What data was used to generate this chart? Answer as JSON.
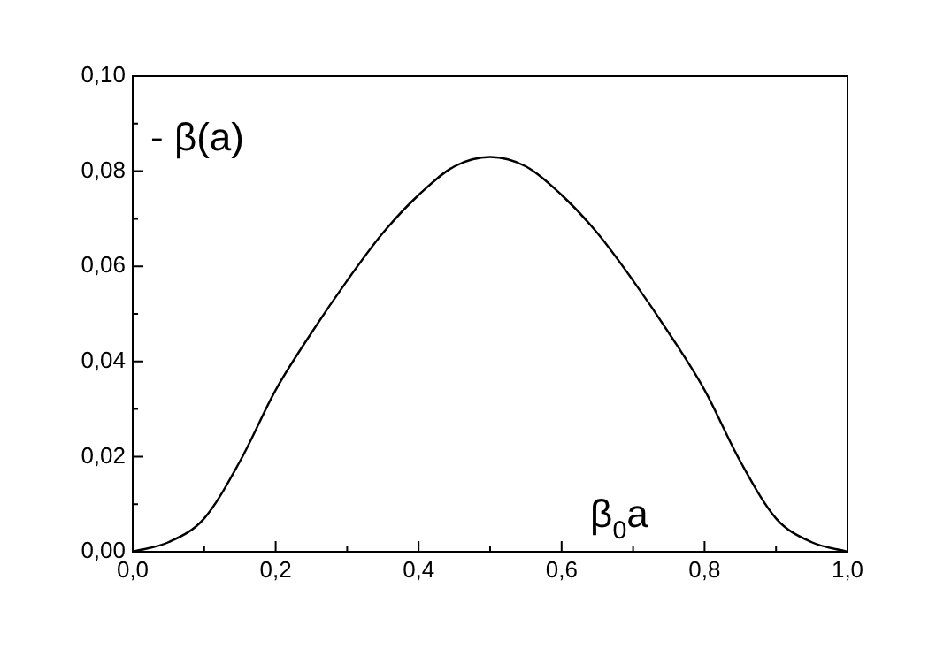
{
  "chart_data": {
    "type": "line",
    "xlabel": "β$_{0}$a",
    "ylabel": "- β(a)",
    "x": [
      0,
      0.05,
      0.1,
      0.15,
      0.2,
      0.25,
      0.3,
      0.35,
      0.4,
      0.45,
      0.5,
      0.55,
      0.6,
      0.65,
      0.7,
      0.75,
      0.8,
      0.85,
      0.9,
      0.95,
      1
    ],
    "series": [
      {
        "color": "#000000",
        "values": [
          0,
          0.002,
          0.007,
          0.019,
          0.034,
          0.046,
          0.057,
          0.067,
          0.075,
          0.081,
          0.083,
          0.081,
          0.075,
          0.067,
          0.057,
          0.046,
          0.034,
          0.019,
          0.007,
          0.002,
          0
        ]
      }
    ],
    "xlim": [
      0,
      1
    ],
    "xticks": [
      {
        "value": 0,
        "label": "0,0"
      },
      {
        "value": 0.1,
        "label": null
      },
      {
        "value": 0.2,
        "label": "0,2"
      },
      {
        "value": 0.3,
        "label": null
      },
      {
        "value": 0.4,
        "label": "0,4"
      },
      {
        "value": 0.5,
        "label": null
      },
      {
        "value": 0.6,
        "label": "0,6"
      },
      {
        "value": 0.7,
        "label": null
      },
      {
        "value": 0.8,
        "label": "0,8"
      },
      {
        "value": 0.9,
        "label": null
      },
      {
        "value": 1,
        "label": "1,0"
      }
    ],
    "ylim": [
      0,
      0.1
    ],
    "yticks": [
      {
        "value": 0,
        "label": "0,00"
      },
      {
        "value": 0.01,
        "label": null
      },
      {
        "value": 0.02,
        "label": "0,02"
      },
      {
        "value": 0.03,
        "label": null
      },
      {
        "value": 0.04,
        "label": "0,04"
      },
      {
        "value": 0.05,
        "label": null
      },
      {
        "value": 0.06,
        "label": "0,06"
      },
      {
        "value": 0.07,
        "label": null
      },
      {
        "value": 0.08,
        "label": "0,08"
      },
      {
        "value": 0.09,
        "label": null
      },
      {
        "value": 0.1,
        "label": "0,10"
      }
    ],
    "grid": false,
    "legend": false,
    "marker": "none",
    "line_style": "solid"
  }
}
